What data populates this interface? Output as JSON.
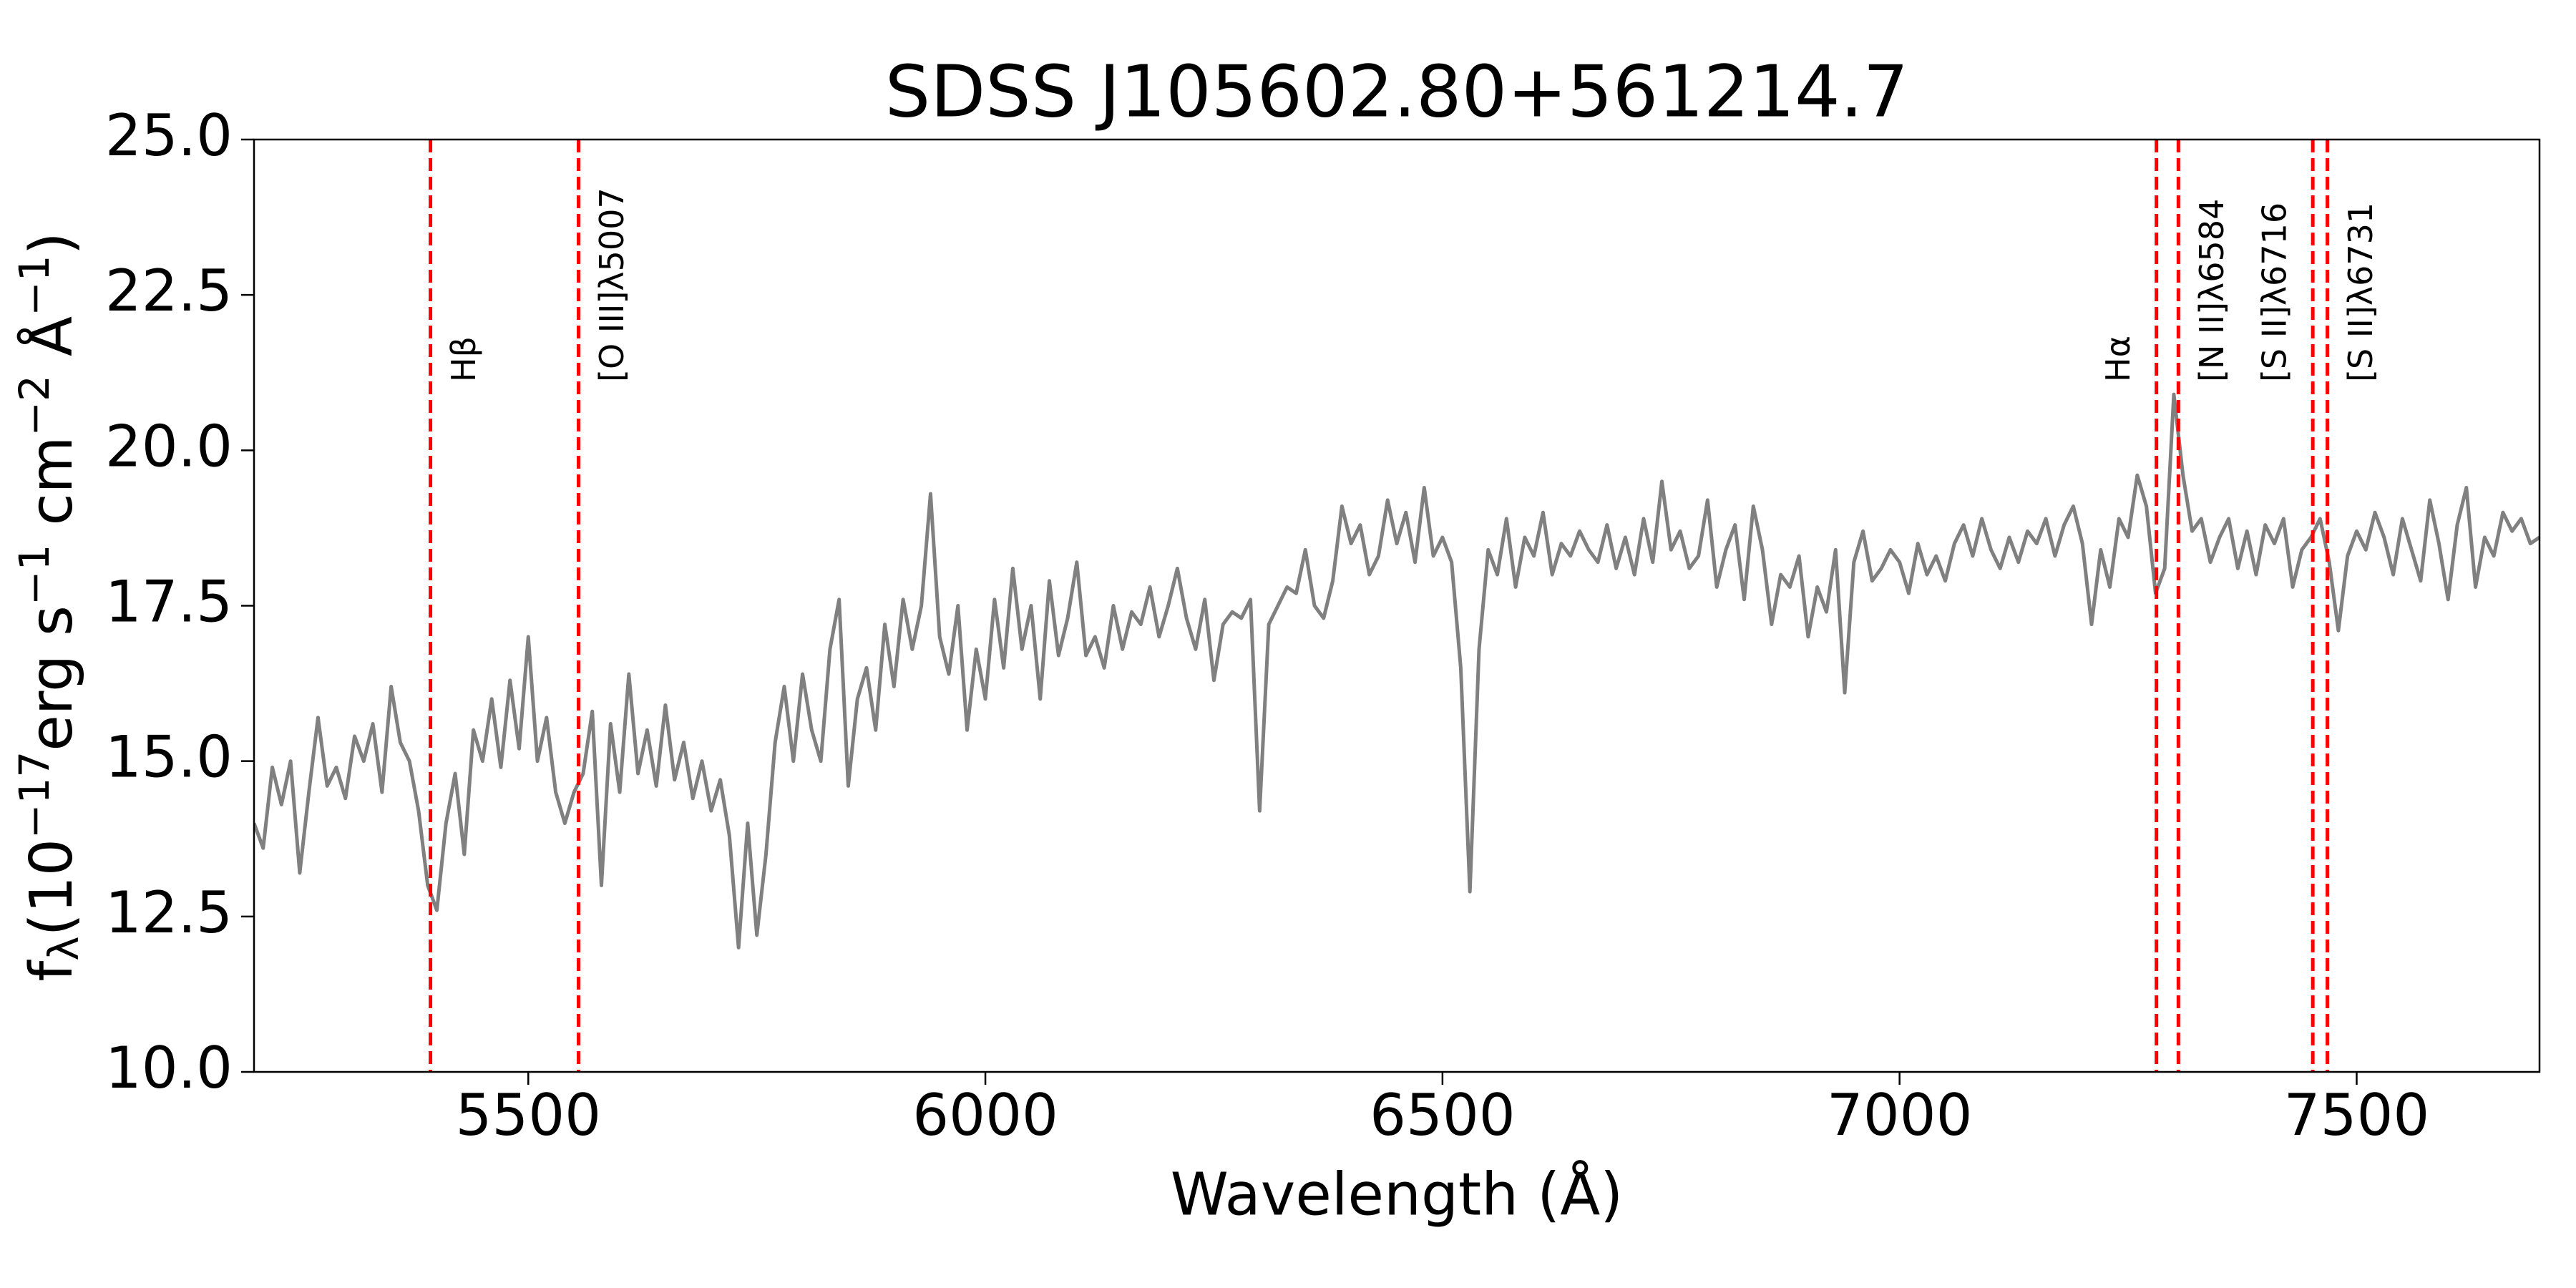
{
  "chart_data": {
    "type": "line",
    "title": "SDSS J105602.80+561214.7",
    "xlabel": "Wavelength (Å)",
    "ylabel": [
      {
        "text": "f",
        "shift": "base"
      },
      {
        "text": "λ",
        "shift": "sub"
      },
      {
        "text": "(10",
        "shift": "base"
      },
      {
        "text": "−17",
        "shift": "super"
      },
      {
        "text": "erg s",
        "shift": "base"
      },
      {
        "text": "−1",
        "shift": "super"
      },
      {
        "text": " cm",
        "shift": "base"
      },
      {
        "text": "−2",
        "shift": "super"
      },
      {
        "text": " Å",
        "shift": "base"
      },
      {
        "text": "−1",
        "shift": "super"
      },
      {
        "text": ")",
        "shift": "base"
      }
    ],
    "xlim": [
      5200,
      7700
    ],
    "xticks": [
      5500,
      6000,
      6500,
      7000,
      7500
    ],
    "ylim": [
      10,
      25
    ],
    "yticks": [
      {
        "value": 10,
        "label": "10.0"
      },
      {
        "value": 12.5,
        "label": "12.5"
      },
      {
        "value": 15,
        "label": "15.0"
      },
      {
        "value": 17.5,
        "label": "17.5"
      },
      {
        "value": 20,
        "label": "20.0"
      },
      {
        "value": 22.5,
        "label": "22.5"
      },
      {
        "value": 25,
        "label": "25.0"
      }
    ],
    "grid": false,
    "x": [
      5200,
      5210,
      5220,
      5230,
      5240,
      5250,
      5260,
      5270,
      5280,
      5290,
      5300,
      5310,
      5320,
      5330,
      5340,
      5350,
      5360,
      5370,
      5380,
      5390,
      5400,
      5410,
      5420,
      5430,
      5440,
      5450,
      5460,
      5470,
      5480,
      5490,
      5500,
      5510,
      5520,
      5530,
      5540,
      5550,
      5560,
      5570,
      5580,
      5590,
      5600,
      5610,
      5620,
      5630,
      5640,
      5650,
      5660,
      5670,
      5680,
      5690,
      5700,
      5710,
      5720,
      5730,
      5740,
      5750,
      5760,
      5770,
      5780,
      5790,
      5800,
      5810,
      5820,
      5830,
      5840,
      5850,
      5860,
      5870,
      5880,
      5890,
      5900,
      5910,
      5920,
      5930,
      5940,
      5950,
      5960,
      5970,
      5980,
      5990,
      6000,
      6010,
      6020,
      6030,
      6040,
      6050,
      6060,
      6070,
      6080,
      6090,
      6100,
      6110,
      6120,
      6130,
      6140,
      6150,
      6160,
      6170,
      6180,
      6190,
      6200,
      6210,
      6220,
      6230,
      6240,
      6250,
      6260,
      6270,
      6280,
      6290,
      6300,
      6310,
      6320,
      6330,
      6340,
      6350,
      6360,
      6370,
      6380,
      6390,
      6400,
      6410,
      6420,
      6430,
      6440,
      6450,
      6460,
      6470,
      6480,
      6490,
      6500,
      6510,
      6520,
      6530,
      6540,
      6550,
      6560,
      6570,
      6580,
      6590,
      6600,
      6610,
      6620,
      6630,
      6640,
      6650,
      6660,
      6670,
      6680,
      6690,
      6700,
      6710,
      6720,
      6730,
      6740,
      6750,
      6760,
      6770,
      6780,
      6790,
      6800,
      6810,
      6820,
      6830,
      6840,
      6850,
      6860,
      6870,
      6880,
      6890,
      6900,
      6910,
      6920,
      6930,
      6940,
      6950,
      6960,
      6970,
      6980,
      6990,
      7000,
      7010,
      7020,
      7030,
      7040,
      7050,
      7060,
      7070,
      7080,
      7090,
      7100,
      7110,
      7120,
      7130,
      7140,
      7150,
      7160,
      7170,
      7180,
      7190,
      7200,
      7210,
      7220,
      7230,
      7240,
      7250,
      7260,
      7270,
      7280,
      7290,
      7300,
      7310,
      7320,
      7330,
      7340,
      7350,
      7360,
      7370,
      7380,
      7390,
      7400,
      7410,
      7420,
      7430,
      7440,
      7450,
      7460,
      7470,
      7480,
      7490,
      7500,
      7510,
      7520,
      7530,
      7540,
      7550,
      7560,
      7570,
      7580,
      7590,
      7600,
      7610,
      7620,
      7630,
      7640,
      7650,
      7660,
      7670,
      7680,
      7690,
      7700
    ],
    "series": [
      {
        "color": "#808080",
        "values": [
          14.0,
          13.6,
          14.9,
          14.3,
          15.0,
          13.2,
          14.5,
          15.7,
          14.6,
          14.9,
          14.4,
          15.4,
          15.0,
          15.6,
          14.5,
          16.2,
          15.3,
          15.0,
          14.2,
          13.0,
          12.6,
          14.0,
          14.8,
          13.5,
          15.5,
          15.0,
          16.0,
          14.9,
          16.3,
          15.2,
          17.0,
          15.0,
          15.7,
          14.5,
          14.0,
          14.5,
          14.8,
          15.8,
          13.0,
          15.6,
          14.5,
          16.4,
          14.8,
          15.5,
          14.6,
          15.9,
          14.7,
          15.3,
          14.4,
          15.0,
          14.2,
          14.7,
          13.8,
          12.0,
          14.0,
          12.2,
          13.5,
          15.3,
          16.2,
          15.0,
          16.4,
          15.5,
          15.0,
          16.8,
          17.6,
          14.6,
          16.0,
          16.5,
          15.5,
          17.2,
          16.2,
          17.6,
          16.8,
          17.5,
          19.3,
          17.0,
          16.4,
          17.5,
          15.5,
          16.8,
          16.0,
          17.6,
          16.5,
          18.1,
          16.8,
          17.5,
          16.0,
          17.9,
          16.7,
          17.3,
          18.2,
          16.7,
          17.0,
          16.5,
          17.5,
          16.8,
          17.4,
          17.2,
          17.8,
          17.0,
          17.5,
          18.1,
          17.3,
          16.8,
          17.6,
          16.3,
          17.2,
          17.4,
          17.3,
          17.6,
          14.2,
          17.2,
          17.5,
          17.8,
          17.7,
          18.4,
          17.5,
          17.3,
          17.9,
          19.1,
          18.5,
          18.8,
          18.0,
          18.3,
          19.2,
          18.5,
          19.0,
          18.2,
          19.4,
          18.3,
          18.6,
          18.2,
          16.5,
          12.9,
          16.8,
          18.4,
          18.0,
          18.9,
          17.8,
          18.6,
          18.3,
          19.0,
          18.0,
          18.5,
          18.3,
          18.7,
          18.4,
          18.2,
          18.8,
          18.1,
          18.6,
          18.0,
          18.9,
          18.2,
          19.5,
          18.4,
          18.7,
          18.1,
          18.3,
          19.2,
          17.8,
          18.4,
          18.8,
          17.6,
          19.1,
          18.4,
          17.2,
          18.0,
          17.8,
          18.3,
          17.0,
          17.8,
          17.4,
          18.4,
          16.1,
          18.2,
          18.7,
          17.9,
          18.1,
          18.4,
          18.2,
          17.7,
          18.5,
          18.0,
          18.3,
          17.9,
          18.5,
          18.8,
          18.3,
          18.9,
          18.4,
          18.1,
          18.6,
          18.2,
          18.7,
          18.5,
          18.9,
          18.3,
          18.8,
          19.1,
          18.5,
          17.2,
          18.4,
          17.8,
          18.9,
          18.6,
          19.6,
          19.1,
          17.7,
          18.1,
          20.9,
          19.6,
          18.7,
          18.9,
          18.2,
          18.6,
          18.9,
          18.1,
          18.7,
          18.0,
          18.8,
          18.5,
          18.9,
          17.8,
          18.4,
          18.6,
          18.9,
          18.2,
          17.1,
          18.3,
          18.7,
          18.4,
          19.0,
          18.6,
          18.0,
          18.9,
          18.4,
          17.9,
          19.2,
          18.5,
          17.6,
          18.8,
          19.4,
          17.8,
          18.6,
          18.3,
          19.0,
          18.7,
          18.9,
          18.5,
          18.6
        ]
      }
    ],
    "vlines_color": "#ff0000",
    "vlines": [
      {
        "x": 5393,
        "label": "Hβ",
        "side": "right"
      },
      {
        "x": 5555,
        "label": "[O III]λ5007",
        "side": "right"
      },
      {
        "x": 7281,
        "label": "Hα",
        "side": "left"
      },
      {
        "x": 7305,
        "label": "[N II]λ6584",
        "side": "right"
      },
      {
        "x": 7452,
        "label": "[S II]λ6716",
        "side": "left"
      },
      {
        "x": 7468,
        "label": "[S II]λ6731",
        "side": "right"
      }
    ]
  }
}
